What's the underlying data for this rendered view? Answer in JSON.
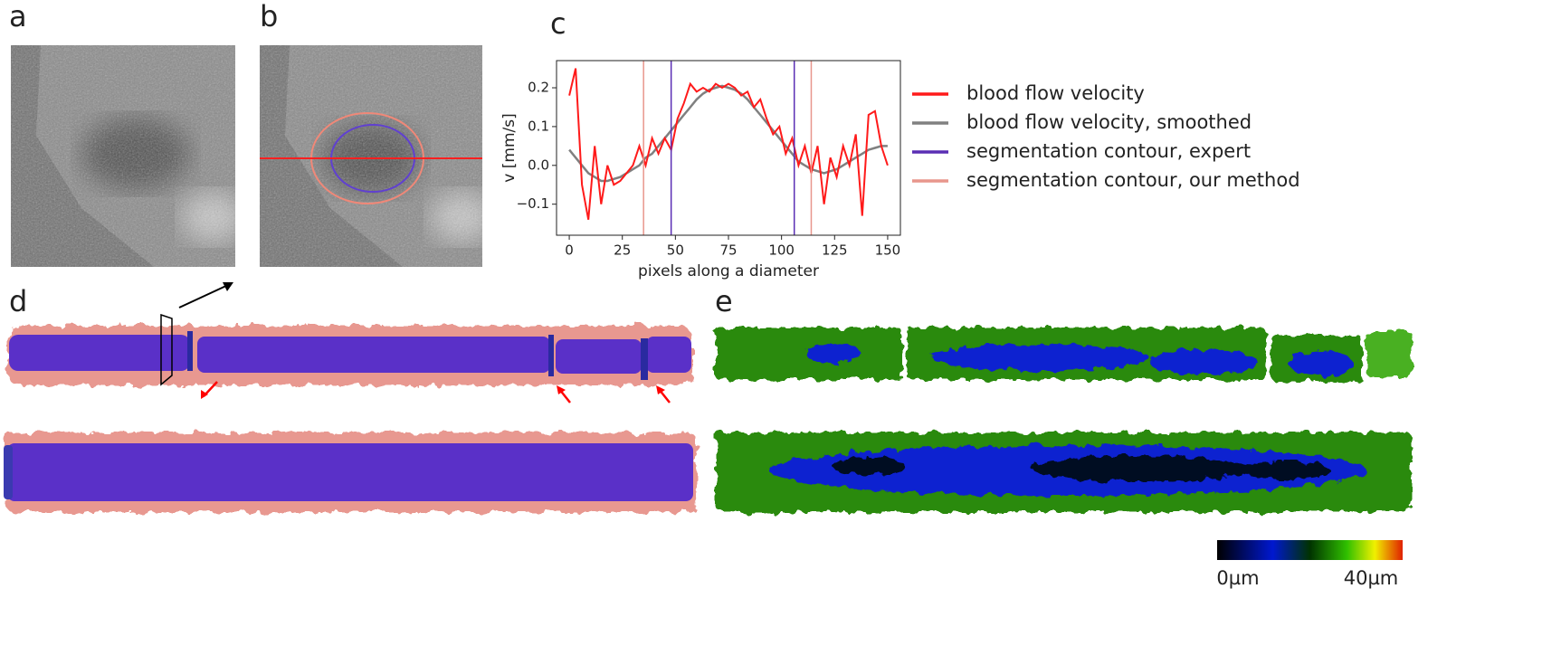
{
  "panel_labels": [
    "a",
    "b",
    "c",
    "d",
    "e"
  ],
  "colorbar": {
    "min_label": "0µm",
    "max_label": "40µm"
  },
  "chart_data": {
    "type": "line",
    "xlabel": "pixels along a diameter",
    "ylabel": "v [mm/s]",
    "x": [
      0,
      3,
      6,
      9,
      12,
      15,
      18,
      21,
      24,
      27,
      30,
      33,
      36,
      39,
      42,
      45,
      48,
      51,
      54,
      57,
      60,
      63,
      66,
      69,
      72,
      75,
      78,
      81,
      84,
      87,
      90,
      93,
      96,
      99,
      102,
      105,
      108,
      111,
      114,
      117,
      120,
      123,
      126,
      129,
      132,
      135,
      138,
      141,
      144,
      147,
      150
    ],
    "series": [
      {
        "name": "blood flow velocity",
        "color": "#ff1a1a",
        "values": [
          0.18,
          0.25,
          -0.05,
          -0.14,
          0.05,
          -0.1,
          0.0,
          -0.05,
          -0.04,
          -0.02,
          0.0,
          0.05,
          0.0,
          0.07,
          0.03,
          0.07,
          0.04,
          0.12,
          0.16,
          0.21,
          0.19,
          0.2,
          0.19,
          0.21,
          0.2,
          0.21,
          0.2,
          0.18,
          0.19,
          0.15,
          0.17,
          0.12,
          0.08,
          0.1,
          0.03,
          0.07,
          0.0,
          0.05,
          -0.02,
          0.05,
          -0.1,
          0.02,
          -0.03,
          0.05,
          0.0,
          0.08,
          -0.13,
          0.13,
          0.14,
          0.05,
          0.0
        ]
      },
      {
        "name": "blood flow velocity, smoothed",
        "color": "#808080",
        "values": [
          0.04,
          0.02,
          0.0,
          -0.02,
          -0.03,
          -0.04,
          -0.04,
          -0.035,
          -0.03,
          -0.02,
          -0.01,
          0.0,
          0.02,
          0.03,
          0.05,
          0.07,
          0.09,
          0.11,
          0.13,
          0.15,
          0.17,
          0.185,
          0.195,
          0.2,
          0.205,
          0.2,
          0.195,
          0.185,
          0.17,
          0.15,
          0.13,
          0.11,
          0.09,
          0.07,
          0.05,
          0.03,
          0.01,
          0.0,
          -0.01,
          -0.015,
          -0.02,
          -0.015,
          -0.01,
          0.0,
          0.01,
          0.02,
          0.03,
          0.04,
          0.045,
          0.05,
          0.05
        ]
      },
      {
        "name": "segmentation contour, expert",
        "color": "#5a2eb4",
        "vlines": [
          48,
          106
        ]
      },
      {
        "name": "segmentation contour, our method",
        "color": "#e8968c",
        "vlines": [
          35,
          114
        ]
      }
    ],
    "xlim": [
      -6,
      156
    ],
    "ylim": [
      -0.18,
      0.27
    ],
    "xticks": [
      0,
      25,
      50,
      75,
      100,
      125,
      150
    ],
    "yticks": [
      {
        "value": -0.1,
        "label": "−0.1"
      },
      {
        "value": 0,
        "label": "0.0"
      },
      0.1,
      0.2
    ]
  }
}
